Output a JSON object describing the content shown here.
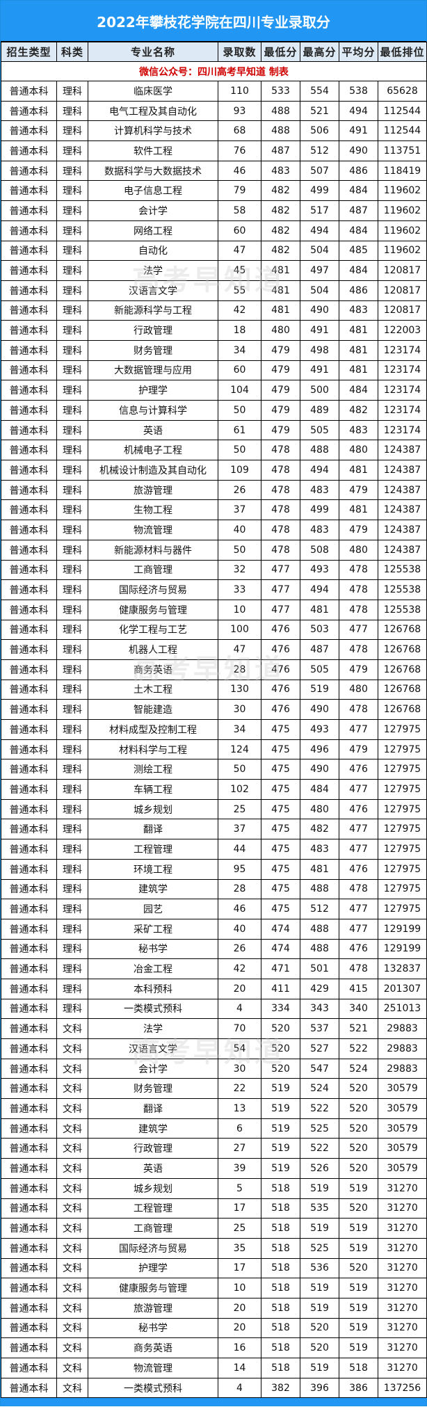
{
  "title": "2022年攀枝花学院在四川专业录取分",
  "headers": [
    "招生类型",
    "科类",
    "专业名称",
    "录取数",
    "最低分",
    "最高分",
    "平均分",
    "最低排位"
  ],
  "note": "微信公众号：四川高考早知道   制表",
  "watermark": "高考早知道",
  "colors": {
    "title_bg": "#2196f3",
    "header_bg": "#dde9f5",
    "note_text": "#d00000"
  },
  "rows": [
    [
      "普通本科",
      "理科",
      "临床医学",
      "110",
      "533",
      "554",
      "538",
      "65628"
    ],
    [
      "普通本科",
      "理科",
      "电气工程及其自动化",
      "93",
      "488",
      "521",
      "494",
      "112544"
    ],
    [
      "普通本科",
      "理科",
      "计算机科学与技术",
      "68",
      "488",
      "506",
      "491",
      "112544"
    ],
    [
      "普通本科",
      "理科",
      "软件工程",
      "76",
      "487",
      "512",
      "490",
      "113751"
    ],
    [
      "普通本科",
      "理科",
      "数据科学与大数据技术",
      "46",
      "483",
      "507",
      "486",
      "118419"
    ],
    [
      "普通本科",
      "理科",
      "电子信息工程",
      "79",
      "482",
      "499",
      "484",
      "119602"
    ],
    [
      "普通本科",
      "理科",
      "会计学",
      "58",
      "482",
      "517",
      "487",
      "119602"
    ],
    [
      "普通本科",
      "理科",
      "网络工程",
      "60",
      "482",
      "494",
      "484",
      "119602"
    ],
    [
      "普通本科",
      "理科",
      "自动化",
      "47",
      "482",
      "504",
      "485",
      "119602"
    ],
    [
      "普通本科",
      "理科",
      "法学",
      "45",
      "481",
      "497",
      "484",
      "120817"
    ],
    [
      "普通本科",
      "理科",
      "汉语言文学",
      "55",
      "481",
      "504",
      "486",
      "120817"
    ],
    [
      "普通本科",
      "理科",
      "新能源科学与工程",
      "42",
      "481",
      "490",
      "483",
      "120817"
    ],
    [
      "普通本科",
      "理科",
      "行政管理",
      "18",
      "480",
      "491",
      "481",
      "122003"
    ],
    [
      "普通本科",
      "理科",
      "财务管理",
      "34",
      "479",
      "498",
      "481",
      "123174"
    ],
    [
      "普通本科",
      "理科",
      "大数据管理与应用",
      "60",
      "479",
      "491",
      "481",
      "123174"
    ],
    [
      "普通本科",
      "理科",
      "护理学",
      "104",
      "479",
      "500",
      "484",
      "123174"
    ],
    [
      "普通本科",
      "理科",
      "信息与计算科学",
      "50",
      "479",
      "489",
      "482",
      "123174"
    ],
    [
      "普通本科",
      "理科",
      "英语",
      "61",
      "479",
      "505",
      "483",
      "123174"
    ],
    [
      "普通本科",
      "理科",
      "机械电子工程",
      "50",
      "478",
      "488",
      "480",
      "124387"
    ],
    [
      "普通本科",
      "理科",
      "机械设计制造及其自动化",
      "109",
      "478",
      "494",
      "481",
      "124387"
    ],
    [
      "普通本科",
      "理科",
      "旅游管理",
      "26",
      "478",
      "483",
      "479",
      "124387"
    ],
    [
      "普通本科",
      "理科",
      "生物工程",
      "37",
      "478",
      "499",
      "481",
      "124387"
    ],
    [
      "普通本科",
      "理科",
      "物流管理",
      "40",
      "478",
      "483",
      "479",
      "124387"
    ],
    [
      "普通本科",
      "理科",
      "新能源材料与器件",
      "50",
      "478",
      "508",
      "480",
      "124387"
    ],
    [
      "普通本科",
      "理科",
      "工商管理",
      "32",
      "477",
      "493",
      "478",
      "125538"
    ],
    [
      "普通本科",
      "理科",
      "国际经济与贸易",
      "33",
      "477",
      "494",
      "478",
      "125538"
    ],
    [
      "普通本科",
      "理科",
      "健康服务与管理",
      "10",
      "477",
      "481",
      "478",
      "125538"
    ],
    [
      "普通本科",
      "理科",
      "化学工程与工艺",
      "100",
      "476",
      "503",
      "477",
      "126768"
    ],
    [
      "普通本科",
      "理科",
      "机器人工程",
      "47",
      "476",
      "487",
      "478",
      "126768"
    ],
    [
      "普通本科",
      "理科",
      "商务英语",
      "28",
      "476",
      "505",
      "479",
      "126768"
    ],
    [
      "普通本科",
      "理科",
      "土木工程",
      "130",
      "476",
      "519",
      "480",
      "126768"
    ],
    [
      "普通本科",
      "理科",
      "智能建造",
      "30",
      "476",
      "490",
      "478",
      "126768"
    ],
    [
      "普通本科",
      "理科",
      "材料成型及控制工程",
      "34",
      "475",
      "493",
      "477",
      "127975"
    ],
    [
      "普通本科",
      "理科",
      "材料科学与工程",
      "124",
      "475",
      "496",
      "479",
      "127975"
    ],
    [
      "普通本科",
      "理科",
      "测绘工程",
      "50",
      "475",
      "490",
      "476",
      "127975"
    ],
    [
      "普通本科",
      "理科",
      "车辆工程",
      "102",
      "475",
      "484",
      "477",
      "127975"
    ],
    [
      "普通本科",
      "理科",
      "城乡规划",
      "25",
      "475",
      "480",
      "476",
      "127975"
    ],
    [
      "普通本科",
      "理科",
      "翻译",
      "37",
      "475",
      "482",
      "477",
      "127975"
    ],
    [
      "普通本科",
      "理科",
      "工程管理",
      "44",
      "475",
      "483",
      "477",
      "127975"
    ],
    [
      "普通本科",
      "理科",
      "环境工程",
      "95",
      "475",
      "481",
      "476",
      "127975"
    ],
    [
      "普通本科",
      "理科",
      "建筑学",
      "28",
      "475",
      "488",
      "478",
      "127975"
    ],
    [
      "普通本科",
      "理科",
      "园艺",
      "46",
      "475",
      "512",
      "477",
      "127975"
    ],
    [
      "普通本科",
      "理科",
      "采矿工程",
      "40",
      "474",
      "488",
      "477",
      "129199"
    ],
    [
      "普通本科",
      "理科",
      "秘书学",
      "26",
      "474",
      "488",
      "476",
      "129199"
    ],
    [
      "普通本科",
      "理科",
      "冶金工程",
      "42",
      "471",
      "501",
      "478",
      "132837"
    ],
    [
      "普通本科",
      "理科",
      "本科预科",
      "20",
      "411",
      "429",
      "415",
      "201307"
    ],
    [
      "普通本科",
      "理科",
      "一类模式预科",
      "4",
      "334",
      "343",
      "340",
      "251013"
    ],
    [
      "普通本科",
      "文科",
      "法学",
      "70",
      "520",
      "537",
      "521",
      "29883"
    ],
    [
      "普通本科",
      "文科",
      "汉语言文学",
      "54",
      "520",
      "527",
      "522",
      "29883"
    ],
    [
      "普通本科",
      "文科",
      "会计学",
      "30",
      "520",
      "547",
      "524",
      "29883"
    ],
    [
      "普通本科",
      "文科",
      "财务管理",
      "22",
      "519",
      "524",
      "520",
      "30579"
    ],
    [
      "普通本科",
      "文科",
      "翻译",
      "13",
      "519",
      "522",
      "520",
      "30579"
    ],
    [
      "普通本科",
      "文科",
      "建筑学",
      "6",
      "519",
      "525",
      "520",
      "30579"
    ],
    [
      "普通本科",
      "文科",
      "行政管理",
      "27",
      "519",
      "522",
      "520",
      "30579"
    ],
    [
      "普通本科",
      "文科",
      "英语",
      "39",
      "519",
      "526",
      "520",
      "30579"
    ],
    [
      "普通本科",
      "文科",
      "城乡规划",
      "5",
      "518",
      "519",
      "519",
      "31270"
    ],
    [
      "普通本科",
      "文科",
      "工程管理",
      "17",
      "518",
      "535",
      "520",
      "31270"
    ],
    [
      "普通本科",
      "文科",
      "工商管理",
      "25",
      "518",
      "519",
      "519",
      "31270"
    ],
    [
      "普通本科",
      "文科",
      "国际经济与贸易",
      "35",
      "518",
      "525",
      "519",
      "31270"
    ],
    [
      "普通本科",
      "文科",
      "护理学",
      "17",
      "518",
      "536",
      "520",
      "31270"
    ],
    [
      "普通本科",
      "文科",
      "健康服务与管理",
      "10",
      "518",
      "519",
      "519",
      "31270"
    ],
    [
      "普通本科",
      "文科",
      "旅游管理",
      "20",
      "518",
      "519",
      "519",
      "31270"
    ],
    [
      "普通本科",
      "文科",
      "秘书学",
      "20",
      "518",
      "520",
      "519",
      "31270"
    ],
    [
      "普通本科",
      "文科",
      "商务英语",
      "16",
      "518",
      "520",
      "519",
      "31270"
    ],
    [
      "普通本科",
      "文科",
      "物流管理",
      "14",
      "518",
      "519",
      "518",
      "31270"
    ],
    [
      "普通本科",
      "文科",
      "一类模式预科",
      "4",
      "382",
      "396",
      "386",
      "137256"
    ]
  ]
}
